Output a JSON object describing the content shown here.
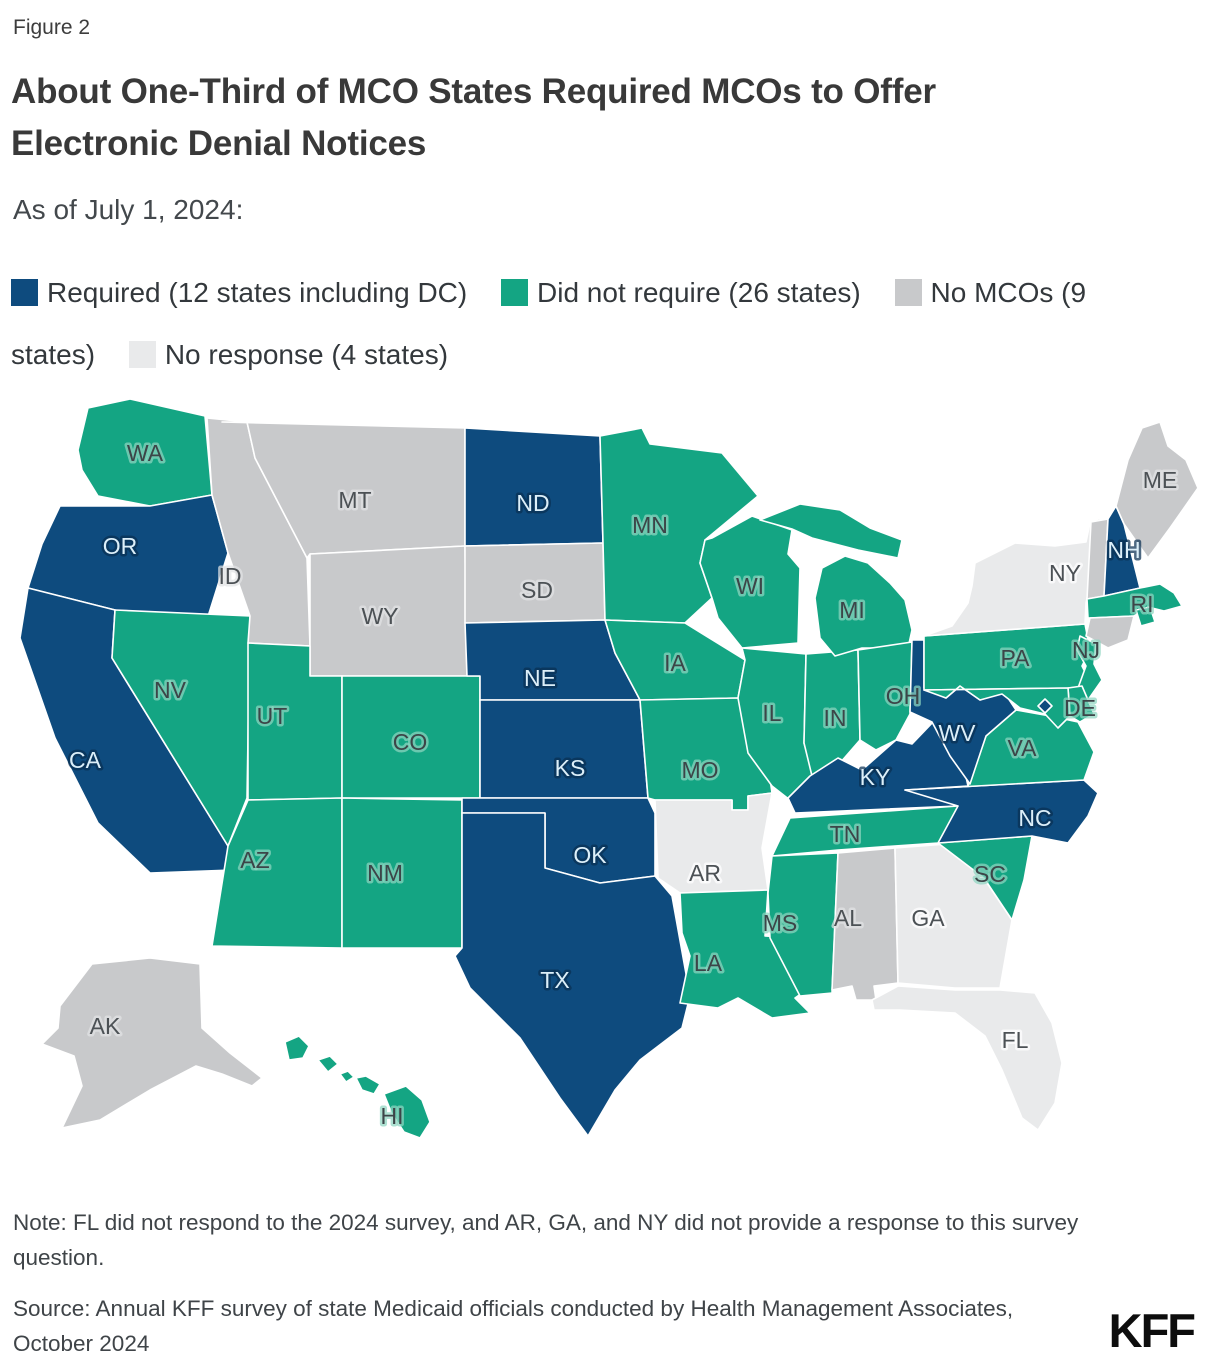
{
  "figure_label": "Figure 2",
  "title": "About One-Third of MCO States Required MCOs to Offer Electronic Denial Notices",
  "subtitle": "As of July 1, 2024:",
  "legend": {
    "items": [
      {
        "key": "required",
        "label": "Required (12 states including DC)"
      },
      {
        "key": "did_not_require",
        "label": "Did not require (26 states)"
      },
      {
        "key": "no_mcos",
        "label": "No MCOs (9 states)"
      },
      {
        "key": "no_response",
        "label": "No response (4 states)"
      }
    ]
  },
  "colors": {
    "required": "#0E4B7E",
    "did_not_require": "#14A583",
    "no_mcos": "#C8C9CB",
    "no_response": "#E9EAEB"
  },
  "label_colors": {
    "required": {
      "text": "#DCEFF9",
      "halo": "#0A2F52"
    },
    "did_not_require": {
      "text": "#3C4548",
      "halo": "#8FD6C0"
    },
    "no_mcos": {
      "text": "#4C5155",
      "halo": "#E2E3E5"
    },
    "no_response": {
      "text": "#4C5155",
      "halo": "#FFFFFF"
    }
  },
  "chart_data": {
    "type": "choropleth",
    "region": "United States",
    "unit": "state",
    "legend_position": "top",
    "categories": {
      "required": [
        "OR",
        "CA",
        "ND",
        "NE",
        "KS",
        "OK",
        "TX",
        "KY",
        "WV",
        "NC",
        "NH",
        "DC"
      ],
      "did_not_require": [
        "WA",
        "NV",
        "UT",
        "CO",
        "AZ",
        "NM",
        "MN",
        "IA",
        "MO",
        "WI",
        "IL",
        "IN",
        "MI",
        "OH",
        "TN",
        "MS",
        "LA",
        "SC",
        "VA",
        "PA",
        "NJ",
        "DE",
        "MD",
        "MA",
        "RI",
        "HI"
      ],
      "no_mcos": [
        "ID",
        "MT",
        "WY",
        "SD",
        "AL",
        "VT",
        "CT",
        "ME",
        "AK"
      ],
      "no_response": [
        "NY",
        "AR",
        "GA",
        "FL"
      ]
    },
    "states": [
      {
        "id": "WA",
        "label": "WA",
        "category": "did_not_require"
      },
      {
        "id": "OR",
        "label": "OR",
        "category": "required"
      },
      {
        "id": "CA",
        "label": "CA",
        "category": "required"
      },
      {
        "id": "NV",
        "label": "NV",
        "category": "did_not_require"
      },
      {
        "id": "ID",
        "label": "ID",
        "category": "no_mcos"
      },
      {
        "id": "MT",
        "label": "MT",
        "category": "no_mcos"
      },
      {
        "id": "WY",
        "label": "WY",
        "category": "no_mcos"
      },
      {
        "id": "UT",
        "label": "UT",
        "category": "did_not_require"
      },
      {
        "id": "CO",
        "label": "CO",
        "category": "did_not_require"
      },
      {
        "id": "AZ",
        "label": "AZ",
        "category": "did_not_require"
      },
      {
        "id": "NM",
        "label": "NM",
        "category": "did_not_require"
      },
      {
        "id": "ND",
        "label": "ND",
        "category": "required"
      },
      {
        "id": "SD",
        "label": "SD",
        "category": "no_mcos"
      },
      {
        "id": "NE",
        "label": "NE",
        "category": "required"
      },
      {
        "id": "KS",
        "label": "KS",
        "category": "required"
      },
      {
        "id": "OK",
        "label": "OK",
        "category": "required"
      },
      {
        "id": "TX",
        "label": "TX",
        "category": "required"
      },
      {
        "id": "MN",
        "label": "MN",
        "category": "did_not_require"
      },
      {
        "id": "IA",
        "label": "IA",
        "category": "did_not_require"
      },
      {
        "id": "MO",
        "label": "MO",
        "category": "did_not_require"
      },
      {
        "id": "AR",
        "label": "AR",
        "category": "no_response"
      },
      {
        "id": "LA",
        "label": "LA",
        "category": "did_not_require"
      },
      {
        "id": "WI",
        "label": "WI",
        "category": "did_not_require"
      },
      {
        "id": "IL",
        "label": "IL",
        "category": "did_not_require"
      },
      {
        "id": "IN",
        "label": "IN",
        "category": "did_not_require"
      },
      {
        "id": "MI",
        "label": "MI",
        "category": "did_not_require"
      },
      {
        "id": "OH",
        "label": "OH",
        "category": "did_not_require"
      },
      {
        "id": "KY",
        "label": "KY",
        "category": "required"
      },
      {
        "id": "TN",
        "label": "TN",
        "category": "did_not_require"
      },
      {
        "id": "MS",
        "label": "MS",
        "category": "did_not_require"
      },
      {
        "id": "AL",
        "label": "AL",
        "category": "no_mcos"
      },
      {
        "id": "GA",
        "label": "GA",
        "category": "no_response"
      },
      {
        "id": "FL",
        "label": "FL",
        "category": "no_response"
      },
      {
        "id": "SC",
        "label": "SC",
        "category": "did_not_require"
      },
      {
        "id": "NC",
        "label": "NC",
        "category": "required"
      },
      {
        "id": "VA",
        "label": "VA",
        "category": "did_not_require"
      },
      {
        "id": "WV",
        "label": "WV",
        "category": "required"
      },
      {
        "id": "PA",
        "label": "PA",
        "category": "did_not_require"
      },
      {
        "id": "NY",
        "label": "NY",
        "category": "no_response"
      },
      {
        "id": "NJ",
        "label": "NJ",
        "category": "did_not_require"
      },
      {
        "id": "DE",
        "label": "DE",
        "category": "did_not_require"
      },
      {
        "id": "MD",
        "label": "",
        "category": "did_not_require"
      },
      {
        "id": "DC",
        "label": "",
        "category": "required"
      },
      {
        "id": "VT",
        "label": "",
        "category": "no_mcos"
      },
      {
        "id": "NH",
        "label": "NH",
        "category": "required"
      },
      {
        "id": "ME",
        "label": "ME",
        "category": "no_mcos"
      },
      {
        "id": "MA",
        "label": "",
        "category": "did_not_require"
      },
      {
        "id": "RI",
        "label": "RI",
        "category": "did_not_require"
      },
      {
        "id": "CT",
        "label": "",
        "category": "no_mcos"
      },
      {
        "id": "AK",
        "label": "AK",
        "category": "no_mcos"
      },
      {
        "id": "HI",
        "label": "HI",
        "category": "did_not_require"
      }
    ]
  },
  "note": "Note: FL did not respond to the 2024 survey, and AR, GA, and NY did not provide a response to this survey question.",
  "source": "Source: Annual KFF survey of state Medicaid officials conducted by Health Management Associates, October 2024",
  "brand": "KFF"
}
